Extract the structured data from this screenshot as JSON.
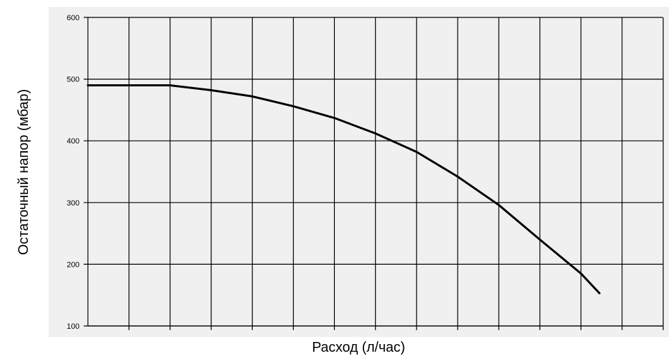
{
  "chart_data": {
    "type": "line",
    "title": "",
    "xlabel": "Расход (л/час)",
    "ylabel": "Остаточный напор (мбар)",
    "ylim": [
      100,
      600
    ],
    "yticks": [
      600,
      500,
      400,
      300,
      200,
      100
    ],
    "x_gridlines": 14,
    "grid": true,
    "legend": "none",
    "colors": {
      "background": "#f0f0f0",
      "grid": "#000000",
      "line": "#000000"
    },
    "series": [
      {
        "x": [
          0,
          1,
          2,
          3,
          4,
          5,
          6,
          7,
          8,
          9,
          10,
          11,
          12,
          12.45
        ],
        "values": [
          490,
          490,
          490,
          482,
          472,
          456,
          437,
          412,
          382,
          342,
          296,
          240,
          185,
          153
        ]
      }
    ]
  }
}
